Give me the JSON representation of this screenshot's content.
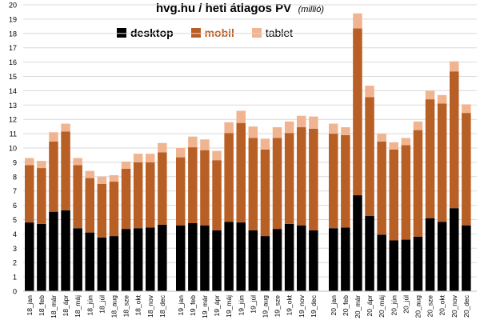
{
  "chart_data": {
    "type": "bar",
    "stacked": true,
    "title": "hvg.hu / heti átlagos PV",
    "subtitle": "(millió)",
    "ylim": [
      0,
      20
    ],
    "yticks": [
      0,
      1,
      2,
      3,
      4,
      5,
      6,
      7,
      8,
      9,
      10,
      11,
      12,
      13,
      14,
      15,
      16,
      17,
      18,
      19,
      20
    ],
    "legend_position": "top",
    "colors": {
      "desktop": "#000000",
      "mobil": "#b85f26",
      "tablet": "#f0b590"
    },
    "groups": [
      {
        "categories": [
          "18_jan",
          "18_feb",
          "18_már",
          "18_ápr",
          "18_máj",
          "18_jún",
          "18_júl",
          "18_aug",
          "18_sze",
          "18_okt",
          "18_nov",
          "18_dec"
        ],
        "series": [
          {
            "name": "desktop",
            "values": [
              4.8,
              4.7,
              5.55,
              5.65,
              4.4,
              4.1,
              3.75,
              3.85,
              4.35,
              4.4,
              4.45,
              4.65
            ]
          },
          {
            "name": "mobil",
            "values": [
              4.0,
              3.9,
              4.9,
              5.5,
              4.4,
              3.8,
              3.75,
              3.8,
              4.2,
              4.6,
              4.55,
              5.05
            ]
          },
          {
            "name": "tablet",
            "values": [
              0.5,
              0.5,
              0.65,
              0.55,
              0.5,
              0.5,
              0.5,
              0.45,
              0.5,
              0.6,
              0.6,
              0.65
            ]
          }
        ]
      },
      {
        "categories": [
          "19_jan",
          "19_feb",
          "19_már",
          "19_ápr",
          "19_máj",
          "19_jún",
          "19_júl",
          "19_aug",
          "19_sze",
          "19_okt",
          "19_nov",
          "19_dec"
        ],
        "series": [
          {
            "name": "desktop",
            "values": [
              4.6,
              4.75,
              4.6,
              4.25,
              4.85,
              4.8,
              4.25,
              3.85,
              4.35,
              4.7,
              4.6,
              4.25
            ]
          },
          {
            "name": "mobil",
            "values": [
              4.75,
              5.3,
              5.25,
              4.9,
              6.2,
              6.95,
              6.45,
              6.05,
              6.35,
              6.35,
              6.85,
              7.1
            ]
          },
          {
            "name": "tablet",
            "values": [
              0.65,
              0.75,
              0.75,
              0.65,
              0.75,
              0.85,
              0.8,
              0.75,
              0.75,
              0.8,
              0.8,
              0.85
            ]
          }
        ]
      },
      {
        "categories": [
          "20_jan",
          "20_feb",
          "20_már",
          "20_ápr",
          "20_máj",
          "20_jún",
          "20_júl",
          "20_aug",
          "20_sze",
          "20_okt",
          "20_nov",
          "20_dec"
        ],
        "series": [
          {
            "name": "desktop",
            "values": [
              4.4,
              4.45,
              6.7,
              5.25,
              3.95,
              3.55,
              3.6,
              3.8,
              5.1,
              4.85,
              5.8,
              4.6
            ]
          },
          {
            "name": "mobil",
            "values": [
              6.6,
              6.45,
              11.65,
              8.3,
              6.5,
              6.35,
              6.6,
              7.45,
              8.3,
              8.25,
              9.55,
              7.85
            ]
          },
          {
            "name": "tablet",
            "values": [
              0.7,
              0.55,
              1.05,
              0.8,
              0.55,
              0.5,
              0.5,
              0.6,
              0.6,
              0.6,
              0.7,
              0.6
            ]
          }
        ]
      }
    ]
  }
}
